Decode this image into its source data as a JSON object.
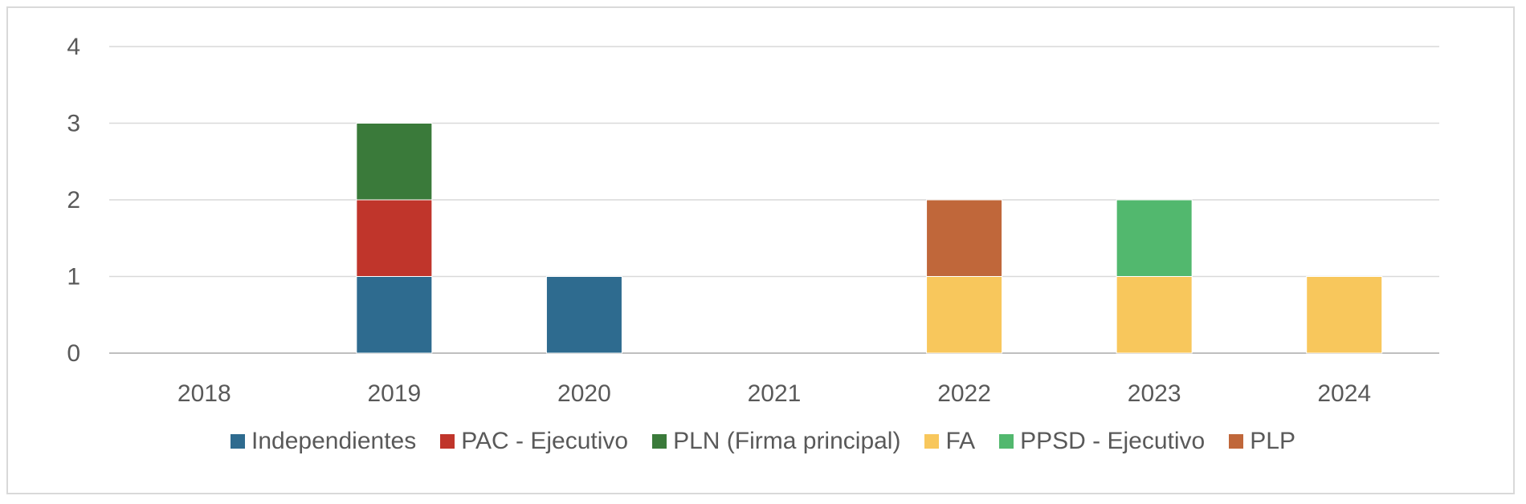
{
  "chart_data": {
    "type": "bar",
    "stacked": true,
    "categories": [
      "2018",
      "2019",
      "2020",
      "2021",
      "2022",
      "2023",
      "2024"
    ],
    "series": [
      {
        "name": "Independientes",
        "color": "#2e6b8f",
        "values": [
          0,
          1,
          1,
          0,
          0,
          0,
          0
        ]
      },
      {
        "name": "PAC - Ejecutivo",
        "color": "#c0352b",
        "values": [
          0,
          1,
          0,
          0,
          0,
          0,
          0
        ]
      },
      {
        "name": "PLN (Firma principal)",
        "color": "#3a7a3a",
        "values": [
          0,
          1,
          0,
          0,
          0,
          0,
          0
        ]
      },
      {
        "name": "FA",
        "color": "#f8c75c",
        "values": [
          0,
          0,
          0,
          0,
          1,
          1,
          1
        ]
      },
      {
        "name": "PPSD - Ejecutivo",
        "color": "#52b86e",
        "values": [
          0,
          0,
          0,
          0,
          0,
          1,
          0
        ]
      },
      {
        "name": "PLP",
        "color": "#c0673a",
        "values": [
          0,
          0,
          0,
          0,
          1,
          0,
          0
        ]
      }
    ],
    "yticks": [
      "0",
      "1",
      "2",
      "3",
      "4"
    ],
    "ylim": [
      0,
      4
    ],
    "grid": true,
    "legend_position": "bottom",
    "title": "",
    "xlabel": "",
    "ylabel": ""
  }
}
